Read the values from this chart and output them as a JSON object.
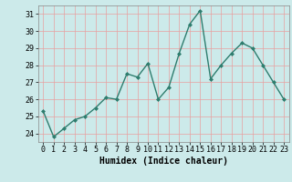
{
  "x": [
    0,
    1,
    2,
    3,
    4,
    5,
    6,
    7,
    8,
    9,
    10,
    11,
    12,
    13,
    14,
    15,
    16,
    17,
    18,
    19,
    20,
    21,
    22,
    23
  ],
  "y": [
    25.3,
    23.8,
    24.3,
    24.8,
    25.0,
    25.5,
    26.1,
    26.0,
    27.5,
    27.3,
    28.1,
    26.0,
    26.7,
    28.7,
    30.4,
    31.2,
    27.2,
    28.0,
    28.7,
    29.3,
    29.0,
    28.0,
    27.0,
    26.0
  ],
  "line_color": "#2e7d6e",
  "marker": "D",
  "marker_size": 2.0,
  "bg_color": "#cceaea",
  "grid_color": "#e8a0a0",
  "xlabel": "Humidex (Indice chaleur)",
  "xlim": [
    -0.5,
    23.5
  ],
  "ylim": [
    23.5,
    31.5
  ],
  "yticks": [
    24,
    25,
    26,
    27,
    28,
    29,
    30,
    31
  ],
  "xticks": [
    0,
    1,
    2,
    3,
    4,
    5,
    6,
    7,
    8,
    9,
    10,
    11,
    12,
    13,
    14,
    15,
    16,
    17,
    18,
    19,
    20,
    21,
    22,
    23
  ],
  "xlabel_fontsize": 7,
  "tick_fontsize": 6,
  "line_width": 1.0
}
